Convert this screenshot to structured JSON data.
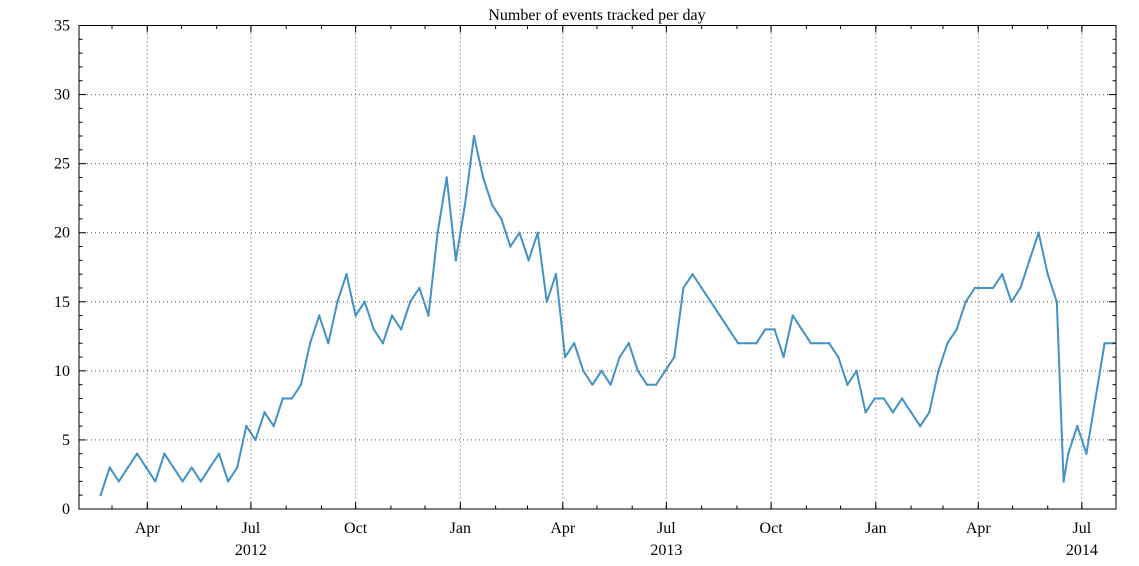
{
  "chart_data": {
    "type": "line",
    "title": "Number of events tracked per day",
    "xlabel": "",
    "ylabel": "",
    "xlim": [
      "2012-02-01",
      "2014-07-31"
    ],
    "ylim": [
      0,
      35
    ],
    "grid": true,
    "yticks": [
      0,
      5,
      10,
      15,
      20,
      25,
      30,
      35
    ],
    "xticks": [
      {
        "date": "2012-04-01",
        "label": "Apr"
      },
      {
        "date": "2012-07-01",
        "label": "Jul"
      },
      {
        "date": "2012-10-01",
        "label": "Oct"
      },
      {
        "date": "2013-01-01",
        "label": "Jan"
      },
      {
        "date": "2013-04-01",
        "label": "Apr"
      },
      {
        "date": "2013-07-01",
        "label": "Jul"
      },
      {
        "date": "2013-10-01",
        "label": "Oct"
      },
      {
        "date": "2014-01-01",
        "label": "Jan"
      },
      {
        "date": "2014-04-01",
        "label": "Apr"
      },
      {
        "date": "2014-07-01",
        "label": "Jul"
      }
    ],
    "year_labels": [
      {
        "date": "2012-07-01",
        "label": "2012"
      },
      {
        "date": "2013-07-01",
        "label": "2013"
      },
      {
        "date": "2014-07-01",
        "label": "2014"
      }
    ],
    "series": [
      {
        "color": "#4292c6",
        "x": [
          "2012-02-20",
          "2012-02-28",
          "2012-03-07",
          "2012-03-15",
          "2012-03-23",
          "2012-03-31",
          "2012-04-08",
          "2012-04-16",
          "2012-04-24",
          "2012-05-02",
          "2012-05-10",
          "2012-05-18",
          "2012-05-26",
          "2012-06-03",
          "2012-06-11",
          "2012-06-19",
          "2012-06-27",
          "2012-07-05",
          "2012-07-13",
          "2012-07-21",
          "2012-07-29",
          "2012-08-06",
          "2012-08-14",
          "2012-08-22",
          "2012-08-30",
          "2012-09-07",
          "2012-09-15",
          "2012-09-23",
          "2012-10-01",
          "2012-10-09",
          "2012-10-17",
          "2012-10-25",
          "2012-11-02",
          "2012-11-10",
          "2012-11-18",
          "2012-11-26",
          "2012-12-04",
          "2012-12-12",
          "2012-12-20",
          "2012-12-28",
          "2013-01-05",
          "2013-01-13",
          "2013-01-21",
          "2013-01-29",
          "2013-02-06",
          "2013-02-14",
          "2013-02-22",
          "2013-03-02",
          "2013-03-10",
          "2013-03-18",
          "2013-03-26",
          "2013-04-03",
          "2013-04-11",
          "2013-04-19",
          "2013-04-27",
          "2013-05-05",
          "2013-05-13",
          "2013-05-21",
          "2013-05-29",
          "2013-06-06",
          "2013-06-14",
          "2013-06-22",
          "2013-06-30",
          "2013-07-08",
          "2013-07-16",
          "2013-07-24",
          "2013-08-01",
          "2013-08-09",
          "2013-08-17",
          "2013-08-25",
          "2013-09-02",
          "2013-09-10",
          "2013-09-18",
          "2013-09-26",
          "2013-10-04",
          "2013-10-12",
          "2013-10-20",
          "2013-10-28",
          "2013-11-05",
          "2013-11-13",
          "2013-11-21",
          "2013-11-29",
          "2013-12-07",
          "2013-12-15",
          "2013-12-23",
          "2013-12-31",
          "2014-01-08",
          "2014-01-16",
          "2014-01-24",
          "2014-02-01",
          "2014-02-09",
          "2014-02-17",
          "2014-02-25",
          "2014-03-05",
          "2014-03-13",
          "2014-03-21",
          "2014-03-29",
          "2014-04-06",
          "2014-04-14",
          "2014-04-22",
          "2014-04-30",
          "2014-05-08",
          "2014-05-16",
          "2014-05-24",
          "2014-06-01",
          "2014-06-09",
          "2014-06-15",
          "2014-06-19",
          "2014-06-27",
          "2014-07-05",
          "2014-07-13",
          "2014-07-21",
          "2014-07-29"
        ],
        "y": [
          1,
          3,
          2,
          3,
          4,
          3,
          2,
          4,
          3,
          2,
          3,
          2,
          3,
          4,
          2,
          3,
          6,
          5,
          7,
          6,
          8,
          8,
          9,
          12,
          14,
          12,
          15,
          17,
          14,
          15,
          13,
          12,
          14,
          13,
          15,
          16,
          14,
          20,
          24,
          18,
          22,
          27,
          24,
          22,
          21,
          19,
          20,
          18,
          20,
          15,
          17,
          11,
          12,
          10,
          9,
          10,
          9,
          11,
          12,
          10,
          9,
          9,
          10,
          11,
          16,
          17,
          16,
          15,
          14,
          13,
          12,
          12,
          12,
          13,
          13,
          11,
          14,
          13,
          12,
          12,
          12,
          11,
          9,
          10,
          7,
          8,
          8,
          7,
          8,
          7,
          6,
          7,
          10,
          12,
          13,
          15,
          16,
          16,
          16,
          17,
          15,
          16,
          18,
          20,
          17,
          15,
          2,
          4,
          6,
          4,
          8,
          12,
          12
        ]
      }
    ]
  }
}
